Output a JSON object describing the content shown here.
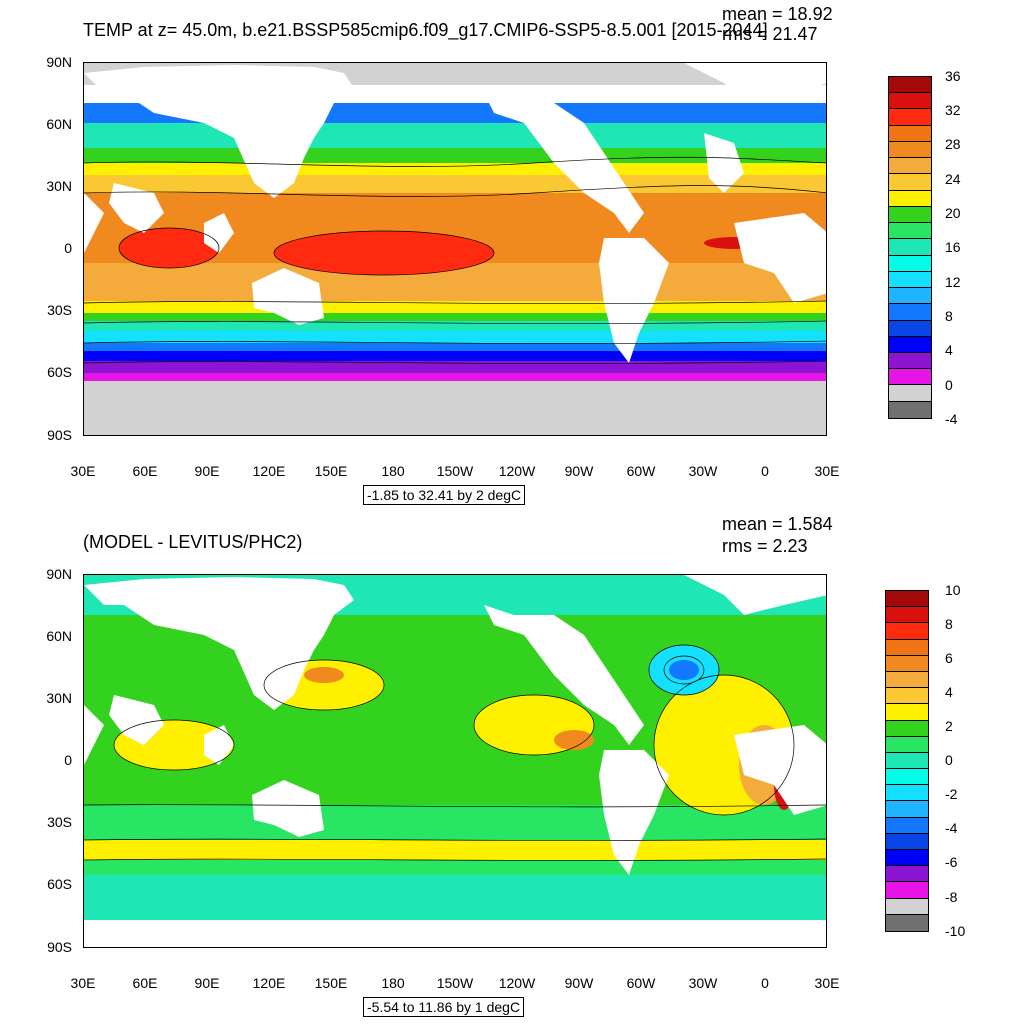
{
  "panels": [
    {
      "title": "TEMP at z=  45.0m, b.e21.BSSP585cmip6.f09_g17.CMIP6-SSP5-8.5.001 [2015-2044]",
      "mean": "mean = 18.92",
      "rms": "rms = 21.47",
      "info": "-1.85 to 32.41 by 2 degC",
      "colorbar_labels": [
        "36",
        "32",
        "28",
        "24",
        "20",
        "16",
        "12",
        "8",
        "4",
        "0",
        "-4"
      ],
      "colorbar_colors": [
        "#a50a0a",
        "#d81010",
        "#ff2a10",
        "#f07414",
        "#f08a1e",
        "#f5aa3c",
        "#fac832",
        "#fff000",
        "#32d21e",
        "#28e664",
        "#1ee6b4",
        "#00ffe6",
        "#14e1ff",
        "#1eb4ff",
        "#1478ff",
        "#0a46e6",
        "#0000ff",
        "#8c14d2",
        "#e614e6",
        "#d2d2d2",
        "#707070"
      ]
    },
    {
      "title": "(MODEL - LEVITUS/PHC2)",
      "mean": "mean = 1.584",
      "rms": "rms = 2.23",
      "info": "-5.54 to 11.86 by 1 degC",
      "colorbar_labels": [
        "10",
        "8",
        "6",
        "4",
        "2",
        "0",
        "-2",
        "-4",
        "-6",
        "-8",
        "-10"
      ],
      "colorbar_colors": [
        "#a50a0a",
        "#d81010",
        "#ff2a10",
        "#f07414",
        "#f08a1e",
        "#f5aa3c",
        "#fac832",
        "#fff000",
        "#32d21e",
        "#28e664",
        "#1ee6b4",
        "#00ffe6",
        "#14e1ff",
        "#1eb4ff",
        "#1478ff",
        "#0a46e6",
        "#0000ff",
        "#8c14d2",
        "#e614e6",
        "#d2d2d2",
        "#707070"
      ]
    }
  ],
  "axes": {
    "lat_labels": [
      "90N",
      "60N",
      "30N",
      "0",
      "30S",
      "60S",
      "90S"
    ],
    "lon_labels": [
      "30E",
      "60E",
      "90E",
      "120E",
      "150E",
      "180",
      "150W",
      "120W",
      "90W",
      "60W",
      "30W",
      "0",
      "30E"
    ]
  }
}
